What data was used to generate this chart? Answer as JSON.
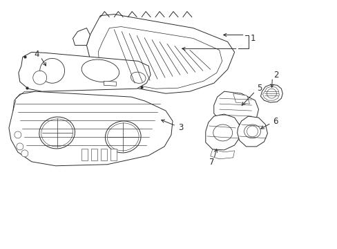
{
  "background": "#ffffff",
  "line_color": "#2a2a2a",
  "line_width": 0.7,
  "label_fontsize": 8.5,
  "figsize": [
    4.89,
    3.6
  ],
  "dpi": 100
}
